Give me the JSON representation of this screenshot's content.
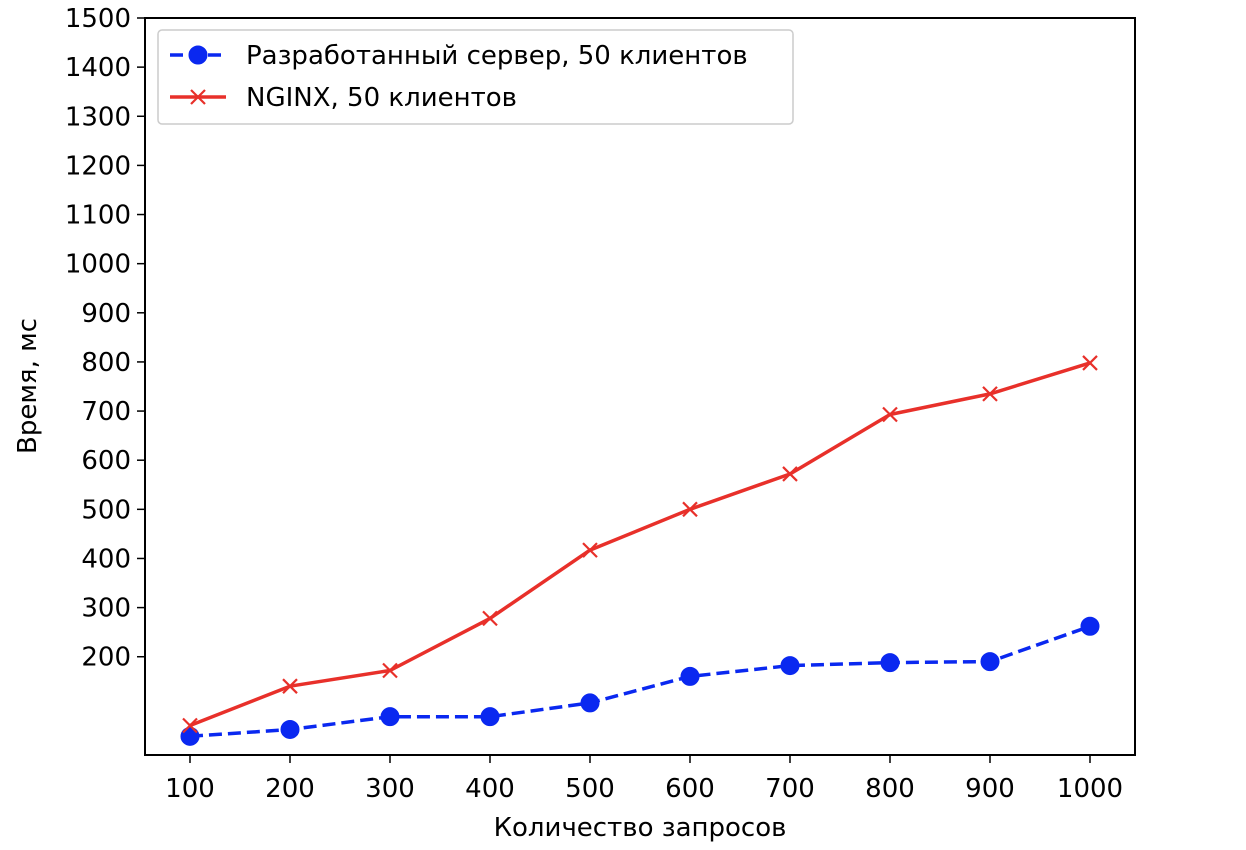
{
  "chart_data": {
    "type": "line",
    "title": "",
    "xlabel": "Количество запросов",
    "ylabel": "Время, мс",
    "x": [
      100,
      200,
      300,
      400,
      500,
      600,
      700,
      800,
      900,
      1000
    ],
    "x_ticks": [
      "100",
      "200",
      "300",
      "400",
      "500",
      "600",
      "700",
      "800",
      "900",
      "1000"
    ],
    "y_ticks": [
      "200",
      "300",
      "400",
      "500",
      "600",
      "700",
      "800",
      "900",
      "1000",
      "1100",
      "1200",
      "1300",
      "1400",
      "1500"
    ],
    "xlim": [
      55,
      1045
    ],
    "ylim": [
      0,
      1500
    ],
    "grid": false,
    "legend_position": "top-left",
    "series": [
      {
        "name": "Разработанный сервер, 50 клиентов",
        "color": "#0a28f0",
        "line_style": "dashed",
        "marker": "circle",
        "values": [
          38,
          52,
          78,
          78,
          106,
          160,
          182,
          188,
          190,
          262
        ]
      },
      {
        "name": "NGINX, 50 клиентов",
        "color": "#e8302a",
        "line_style": "solid",
        "marker": "x",
        "values": [
          60,
          140,
          172,
          278,
          417,
          500,
          572,
          693,
          735,
          798
        ]
      }
    ]
  }
}
